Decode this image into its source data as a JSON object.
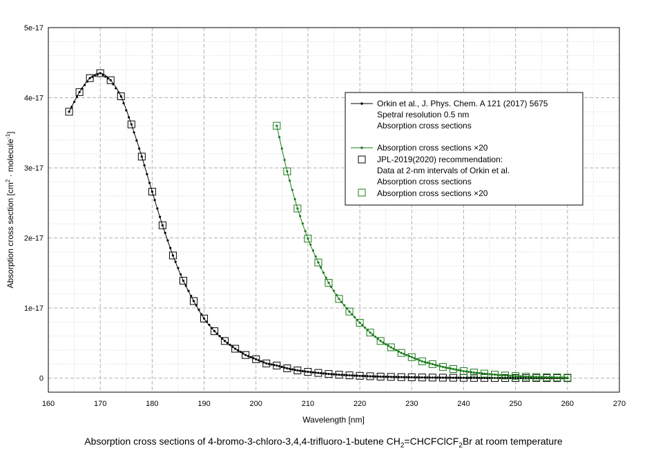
{
  "chart_data": {
    "type": "line",
    "xlabel": "Wavelength [nm]",
    "ylabel_main": "Absorption cross section [cm",
    "ylabel_sup1": "2",
    "ylabel_mid": " · molecule",
    "ylabel_sup2": "-1",
    "ylabel_end": "]",
    "xlim": [
      160,
      270
    ],
    "ylim": [
      -2e-18,
      5e-17
    ],
    "xticks": [
      160,
      170,
      180,
      190,
      200,
      210,
      220,
      230,
      240,
      250,
      260,
      270
    ],
    "yticks": [
      {
        "value": 0,
        "label": "0"
      },
      {
        "value": 1e-17,
        "label": "1e-17"
      },
      {
        "value": 2e-17,
        "label": "2e-17"
      },
      {
        "value": 3e-17,
        "label": "3e-17"
      },
      {
        "value": 4e-17,
        "label": "4e-17"
      },
      {
        "value": 5e-17,
        "label": "5e-17"
      }
    ],
    "grid": true,
    "legend_placement": "center-right",
    "colors": {
      "black": "#000000",
      "green": "#1a7a1a"
    },
    "orkin": {
      "x": [
        164,
        166,
        168,
        170,
        172,
        174,
        176,
        178,
        180,
        182,
        184,
        186,
        188,
        190,
        192,
        194,
        196,
        198,
        200,
        202,
        204,
        206,
        208,
        210,
        212,
        214,
        216,
        218,
        220,
        222,
        224,
        226,
        228,
        230,
        232,
        234,
        236,
        238,
        240,
        242,
        244,
        246,
        248,
        250,
        252,
        254,
        256,
        258,
        260
      ],
      "y": [
        3.8e-17,
        4.08e-17,
        4.28e-17,
        4.35e-17,
        4.25e-17,
        4.02e-17,
        3.62e-17,
        3.16e-17,
        2.66e-17,
        2.18e-17,
        1.75e-17,
        1.39e-17,
        1.1e-17,
        8.5e-18,
        6.7e-18,
        5.3e-18,
        4.2e-18,
        3.3e-18,
        2.7e-18,
        2.1e-18,
        1.8e-18,
        1.4e-18,
        1.1e-18,
        9e-19,
        7.5e-19,
        6e-19,
        4.9e-19,
        4e-19,
        3.3e-19,
        2.7e-19,
        2.2e-19,
        1.8e-19,
        1.5e-19,
        1.25e-19,
        1e-19,
        8.5e-20,
        7e-20,
        5.8e-20,
        4.8e-20,
        4e-20,
        3.3e-20,
        2.7e-20,
        2.2e-20,
        1.8e-20,
        1.5e-20,
        1.2e-20,
        1e-20,
        8e-21,
        6.5e-21
      ]
    },
    "orkin_x20": {
      "x": [
        204,
        206,
        208,
        210,
        212,
        214,
        216,
        218,
        220,
        222,
        224,
        226,
        228,
        230,
        232,
        234,
        236,
        238,
        240,
        242,
        244,
        246,
        248,
        250,
        252,
        254,
        256,
        258,
        260
      ],
      "y": [
        3.6e-17,
        2.95e-17,
        2.42e-17,
        1.99e-17,
        1.65e-17,
        1.36e-17,
        1.13e-17,
        9.5e-18,
        7.9e-18,
        6.5e-18,
        5.3e-18,
        4.4e-18,
        3.6e-18,
        3e-18,
        2.4e-18,
        2e-18,
        1.6e-18,
        1.3e-18,
        1e-18,
        8e-19,
        6.5e-19,
        5e-19,
        3.8e-19,
        2.9e-19,
        2.2e-19,
        1.7e-19,
        1.3e-19,
        1e-19,
        7e-20
      ]
    },
    "legend": {
      "line1": "Orkin et al., J. Phys. Chem. A 121 (2017) 5675",
      "line2": "Spetral resolution 0.5 nm",
      "line3": "Absorption cross sections",
      "line4": "Absorption cross sections ×20",
      "line5": "JPL-2019(2020) recommendation:",
      "line6": "Data at 2-nm intervals of Orkin et al.",
      "line7": "Absorption cross sections",
      "line8": "Absorption cross sections ×20"
    }
  },
  "caption": {
    "part1": "Absorption cross sections of 4-bromo-3-chloro-3,4,4-trifluoro-1-butene CH",
    "sub1": "2",
    "part2": "=CHCFClCF",
    "sub2": "2",
    "part3": "Br at room temperature"
  }
}
